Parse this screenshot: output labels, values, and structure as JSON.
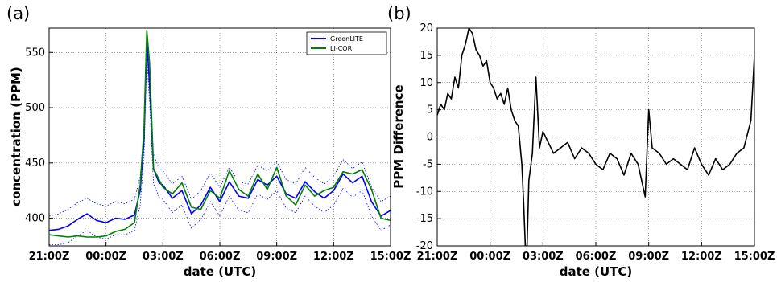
{
  "chart_data": [
    {
      "type": "line",
      "panel_label": "(a)",
      "xlabel": "date (UTC)",
      "ylabel": "concentration (PPM)",
      "x_tick_labels": [
        "21:00Z",
        "00:00Z",
        "03:00Z",
        "06:00Z",
        "09:00Z",
        "12:00Z",
        "15:00Z"
      ],
      "x_tick_hours": [
        0,
        3,
        6,
        9,
        12,
        15,
        18
      ],
      "xlim": [
        0,
        18
      ],
      "y_ticks": [
        400,
        450,
        500,
        550
      ],
      "ylim": [
        375,
        572
      ],
      "grid": true,
      "legend_position": "top-right",
      "x": [
        0,
        0.5,
        1,
        1.5,
        2,
        2.5,
        3,
        3.5,
        4,
        4.5,
        4.8,
        5,
        5.15,
        5.3,
        5.5,
        5.8,
        6,
        6.5,
        7,
        7.5,
        8,
        8.5,
        9,
        9.5,
        10,
        10.5,
        11,
        11.5,
        12,
        12.5,
        13,
        13.5,
        14,
        14.5,
        15,
        15.5,
        16,
        16.5,
        17,
        17.5,
        18
      ],
      "series": [
        {
          "name": "GreenLITE",
          "color": "#0000ff",
          "values": [
            389,
            390,
            393,
            399,
            404,
            398,
            396,
            400,
            399,
            403,
            425,
            470,
            560,
            520,
            445,
            432,
            430,
            418,
            425,
            404,
            412,
            428,
            415,
            433,
            420,
            418,
            435,
            430,
            438,
            422,
            418,
            433,
            424,
            418,
            425,
            440,
            432,
            438,
            415,
            402,
            407
          ]
        },
        {
          "name": "LI-COR",
          "color": "#008000",
          "values": [
            385,
            384,
            383,
            384,
            383,
            383,
            384,
            388,
            390,
            396,
            430,
            480,
            570,
            540,
            445,
            435,
            428,
            422,
            432,
            410,
            408,
            425,
            418,
            443,
            426,
            420,
            440,
            426,
            446,
            420,
            412,
            430,
            420,
            425,
            428,
            442,
            440,
            444,
            426,
            400,
            398
          ]
        }
      ],
      "band_series": [
        {
          "name": "",
          "color": "#0000ff",
          "values": [
            402,
            404,
            408,
            414,
            418,
            413,
            411,
            415,
            413,
            417,
            438,
            480,
            565,
            535,
            458,
            445,
            443,
            431,
            438,
            417,
            425,
            441,
            428,
            446,
            433,
            431,
            448,
            443,
            451,
            435,
            431,
            446,
            437,
            431,
            438,
            453,
            445,
            451,
            428,
            415,
            420
          ]
        },
        {
          "name": "",
          "color": "#0000ff",
          "values": [
            376,
            376,
            378,
            384,
            389,
            383,
            381,
            385,
            385,
            389,
            412,
            455,
            545,
            505,
            432,
            419,
            417,
            405,
            412,
            391,
            399,
            415,
            402,
            420,
            407,
            405,
            422,
            417,
            425,
            409,
            405,
            420,
            411,
            405,
            412,
            427,
            419,
            425,
            402,
            389,
            394
          ]
        }
      ]
    },
    {
      "type": "line",
      "panel_label": "(b)",
      "xlabel": "date (UTC)",
      "ylabel": "PPM Difference",
      "x_tick_labels": [
        "21:00Z",
        "00:00Z",
        "03:00Z",
        "06:00Z",
        "09:00Z",
        "12:00Z",
        "15:00Z"
      ],
      "x_tick_hours": [
        0,
        3,
        6,
        9,
        12,
        15,
        18
      ],
      "xlim": [
        0,
        18
      ],
      "y_ticks": [
        -20,
        -15,
        -10,
        -5,
        0,
        5,
        10,
        15,
        20
      ],
      "ylim": [
        -20,
        20
      ],
      "grid": true,
      "series": [
        {
          "name": "",
          "color": "#000000",
          "x": [
            0,
            0.2,
            0.4,
            0.6,
            0.8,
            1,
            1.2,
            1.4,
            1.6,
            1.8,
            2,
            2.2,
            2.4,
            2.6,
            2.8,
            3,
            3.2,
            3.4,
            3.6,
            3.8,
            4,
            4.2,
            4.4,
            4.6,
            4.8,
            4.9,
            5,
            5.1,
            5.2,
            5.4,
            5.6,
            5.8,
            6,
            6.3,
            6.6,
            7,
            7.4,
            7.8,
            8.2,
            8.6,
            9,
            9.4,
            9.8,
            10.2,
            10.6,
            11,
            11.4,
            11.8,
            12,
            12.2,
            12.6,
            13,
            13.4,
            13.8,
            14.2,
            14.6,
            15,
            15.4,
            15.8,
            16.2,
            16.6,
            17,
            17.4,
            17.8,
            18
          ],
          "values": [
            4,
            6,
            5,
            8,
            7,
            11,
            9,
            15,
            17,
            20,
            19,
            16,
            15,
            13,
            14,
            10,
            9,
            7,
            8,
            6,
            9,
            5,
            3,
            2,
            -5,
            -12,
            -20,
            -20,
            -8,
            -3,
            11,
            -2,
            1,
            -1,
            -3,
            -2,
            -1,
            -4,
            -2,
            -3,
            -5,
            -6,
            -3,
            -4,
            -7,
            -3,
            -5,
            -11,
            5,
            -2,
            -3,
            -5,
            -4,
            -5,
            -6,
            -2,
            -5,
            -7,
            -4,
            -6,
            -5,
            -3,
            -2,
            3,
            15
          ]
        }
      ]
    }
  ]
}
